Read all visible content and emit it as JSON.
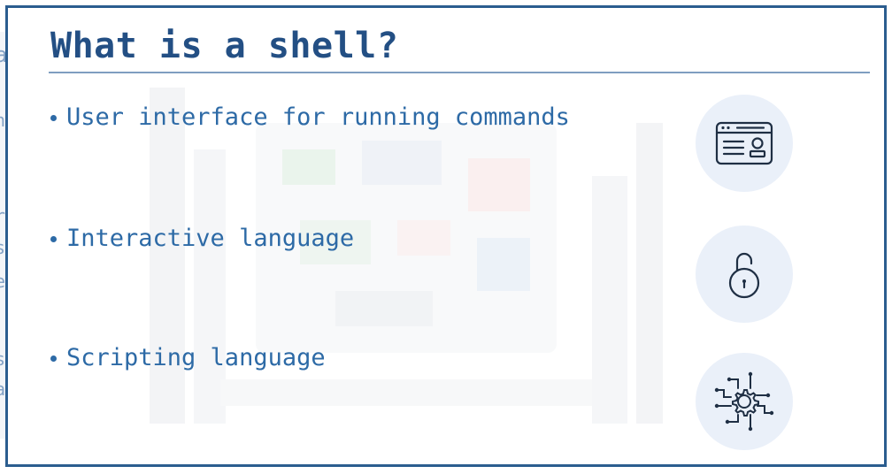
{
  "slide": {
    "title": "What is a shell?",
    "bullets": [
      {
        "text": "User interface for running commands",
        "icon": "terminal-window-icon"
      },
      {
        "text": "Interactive language",
        "icon": "unlocked-padlock-icon"
      },
      {
        "text": "Scripting language",
        "icon": "circuit-gear-icon"
      }
    ]
  },
  "background_slide": {
    "partial_glyphs": [
      "a",
      "n",
      "r",
      "s",
      "e",
      "s",
      "a"
    ]
  },
  "colors": {
    "title": "#234f84",
    "bullet_text": "#2d6aa6",
    "frame_border": "#2b5d8f",
    "icon_circle": "#eaf0f9",
    "icon_stroke": "#1f2f44"
  }
}
